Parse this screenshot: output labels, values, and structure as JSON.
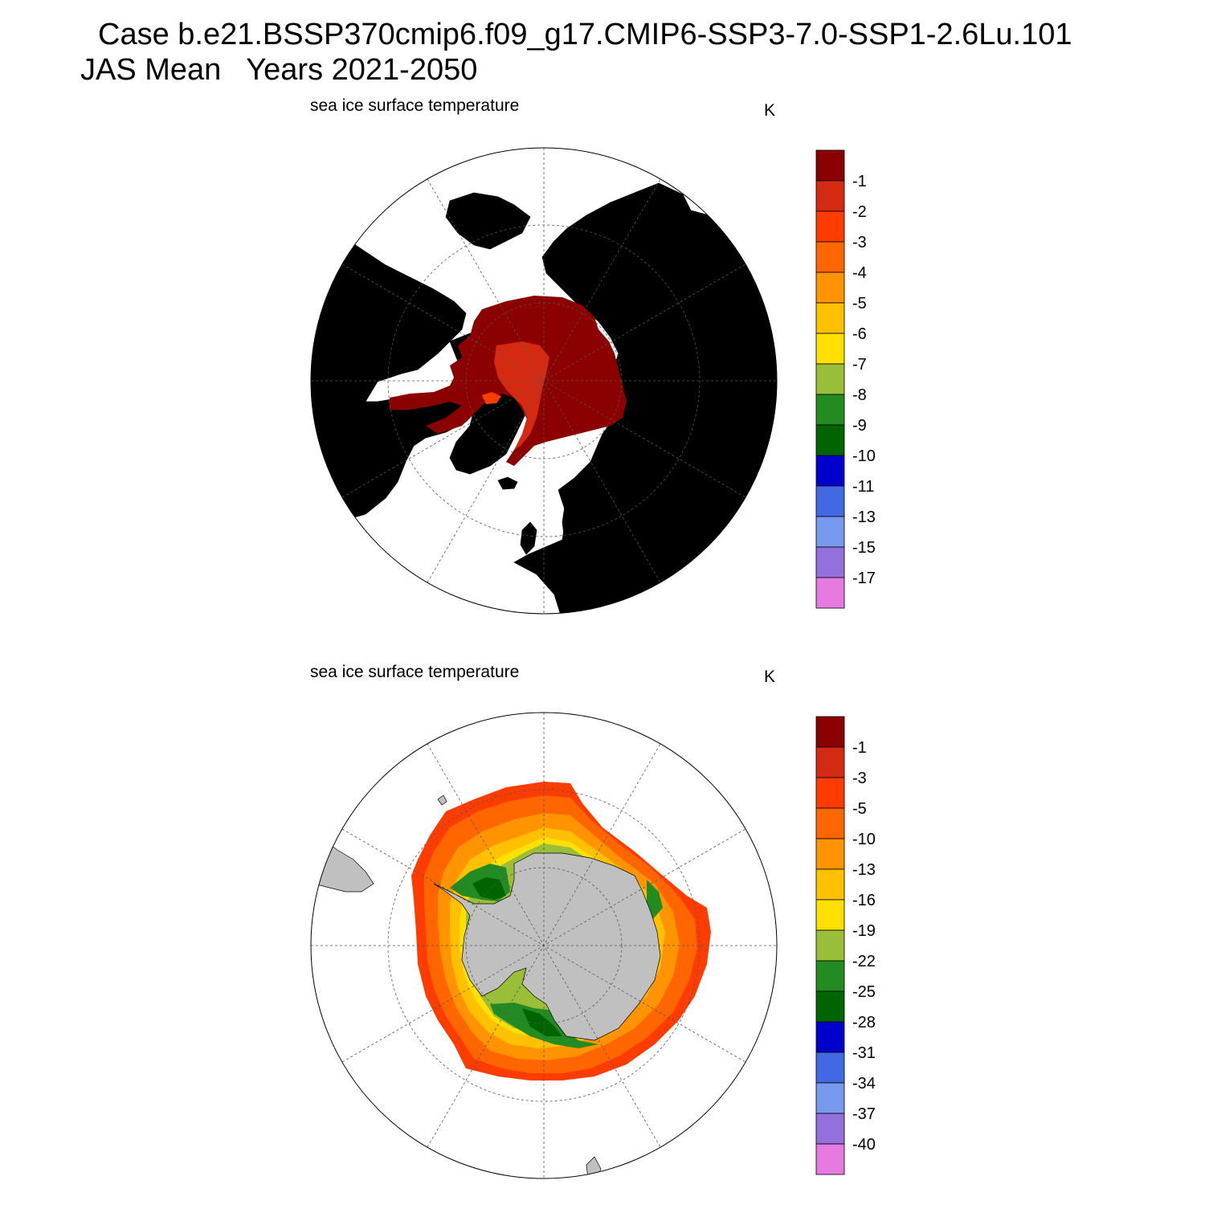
{
  "title_line1": "Case b.e21.BSSP370cmip6.f09_g17.CMIP6-SSP3-7.0-SSP1-2.6Lu.101",
  "title_line2": "JAS Mean   Years 2021-2050",
  "colors": [
    "#8b0000",
    "#d42a12",
    "#ff3c00",
    "#ff6600",
    "#ff9400",
    "#ffc000",
    "#ffe000",
    "#9bbe38",
    "#228b22",
    "#006400",
    "#0000cd",
    "#4169e1",
    "#7799ee",
    "#9370db",
    "#e57ae0"
  ],
  "land_color": "#c0c0c0",
  "panels": [
    {
      "name": "north",
      "left_label": "sea ice surface temperature",
      "unit_label": "K",
      "colorbar_labels": [
        "-1",
        "-2",
        "-3",
        "-4",
        "-5",
        "-6",
        "-7",
        "-8",
        "-9",
        "-10",
        "-11",
        "-13",
        "-15",
        "-17"
      ]
    },
    {
      "name": "south",
      "left_label": "sea ice surface temperature",
      "unit_label": "K",
      "colorbar_labels": [
        "-1",
        "-3",
        "-5",
        "-10",
        "-13",
        "-16",
        "-19",
        "-22",
        "-25",
        "-28",
        "-31",
        "-34",
        "-37",
        "-40"
      ]
    }
  ]
}
